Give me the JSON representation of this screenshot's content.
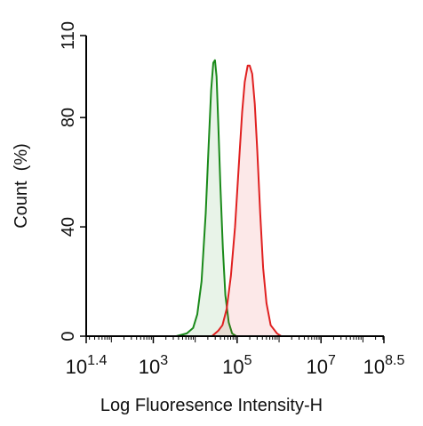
{
  "chart_data": {
    "type": "area",
    "x_label": "Log Fluoresence Intensity-H",
    "y_label": "Count  (%)",
    "xscale": "log10",
    "xlim": [
      1.4,
      8.5
    ],
    "xticks": [
      {
        "value": 1.4,
        "label": {
          "base": "10",
          "exponent": "1.4"
        }
      },
      {
        "value": 3,
        "label": {
          "base": "10",
          "exponent": "3"
        }
      },
      {
        "value": 5,
        "label": {
          "base": "10",
          "exponent": "5"
        }
      },
      {
        "value": 7,
        "label": {
          "base": "10",
          "exponent": "7"
        }
      },
      {
        "value": 8.5,
        "label": {
          "base": "10",
          "exponent": "8.5"
        }
      }
    ],
    "ylim": [
      0,
      110
    ],
    "yticks": [
      0,
      40,
      80,
      110
    ],
    "series": [
      {
        "color": "#1a8a1a",
        "x": [
          3.55,
          3.8,
          3.95,
          4.05,
          4.15,
          4.25,
          4.32,
          4.38,
          4.43,
          4.47,
          4.51,
          4.55,
          4.6,
          4.66,
          4.72,
          4.8,
          4.88,
          4.98
        ],
        "values": [
          0,
          1,
          3,
          8,
          20,
          45,
          70,
          90,
          100,
          101,
          95,
          78,
          55,
          32,
          15,
          5,
          1,
          0
        ]
      },
      {
        "color": "#e02020",
        "x": [
          4.4,
          4.55,
          4.65,
          4.75,
          4.85,
          4.95,
          5.05,
          5.12,
          5.18,
          5.25,
          5.3,
          5.36,
          5.42,
          5.48,
          5.55,
          5.62,
          5.7,
          5.8,
          5.95,
          6.05
        ],
        "values": [
          0,
          2,
          4,
          10,
          22,
          40,
          65,
          82,
          93,
          99,
          99,
          96,
          85,
          68,
          45,
          25,
          12,
          4,
          1,
          0
        ]
      }
    ]
  }
}
